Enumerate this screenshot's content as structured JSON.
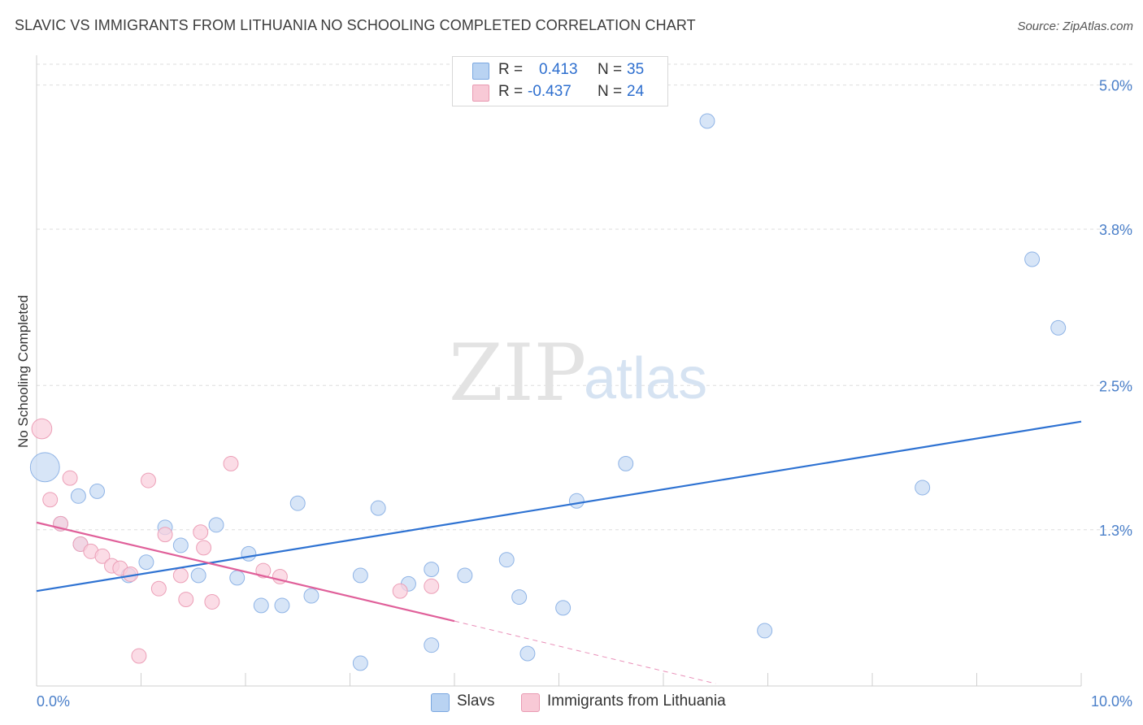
{
  "title": "SLAVIC VS IMMIGRANTS FROM LITHUANIA NO SCHOOLING COMPLETED CORRELATION CHART",
  "source": "Source: ZipAtlas.com",
  "watermark": {
    "zip": "ZIP",
    "atlas": "atlas"
  },
  "legend": {
    "rows": [
      {
        "r_label": "R = ",
        "r_value": "0.413",
        "n_label": "N = ",
        "n_value": "35",
        "color": "#b9d3f2",
        "border": "#7aa7e0"
      },
      {
        "r_label": "R = ",
        "r_value": "-0.437",
        "n_label": "N = ",
        "n_value": "24",
        "color": "#f8c9d6",
        "border": "#e99ab2"
      }
    ]
  },
  "bottom_legend": [
    {
      "label": "Slavs",
      "color": "#b9d3f2",
      "border": "#7aa7e0"
    },
    {
      "label": "Immigrants from Lithuania",
      "color": "#f8c9d6",
      "border": "#e99ab2"
    }
  ],
  "chart_data": {
    "type": "scatter",
    "title": "SLAVIC VS IMMIGRANTS FROM LITHUANIA NO SCHOOLING COMPLETED CORRELATION CHART",
    "xlabel": "",
    "ylabel": "No Schooling Completed",
    "xlim": [
      0,
      10
    ],
    "ylim": [
      0,
      5.2
    ],
    "x_tick_labels": [
      "0.0%",
      "10.0%"
    ],
    "y_ticks": [
      1.3,
      2.5,
      3.8,
      5.0
    ],
    "y_tick_labels": [
      "1.3%",
      "2.5%",
      "3.8%",
      "5.0%"
    ],
    "grid": true,
    "colors": {
      "slavs_line": "#2e72d2",
      "lith_line": "#e0609a",
      "slavs_fill": "#c9dcf4",
      "lith_fill": "#f9d0dd"
    },
    "series": [
      {
        "name": "Slavs",
        "points": [
          [
            0.08,
            1.82,
            16
          ],
          [
            0.23,
            1.35,
            8
          ],
          [
            0.4,
            1.58,
            8
          ],
          [
            0.58,
            1.62,
            8
          ],
          [
            0.42,
            1.18,
            8
          ],
          [
            0.88,
            0.92,
            8
          ],
          [
            1.05,
            1.03,
            8
          ],
          [
            1.23,
            1.32,
            8
          ],
          [
            1.38,
            1.17,
            8
          ],
          [
            1.55,
            0.92,
            8
          ],
          [
            1.72,
            1.34,
            8
          ],
          [
            1.92,
            0.9,
            8
          ],
          [
            2.03,
            1.1,
            8
          ],
          [
            2.15,
            0.67,
            8
          ],
          [
            2.35,
            0.67,
            8
          ],
          [
            2.5,
            1.52,
            8
          ],
          [
            2.63,
            0.75,
            8
          ],
          [
            3.1,
            0.92,
            8
          ],
          [
            3.1,
            0.19,
            8
          ],
          [
            3.27,
            1.48,
            8
          ],
          [
            3.56,
            0.85,
            8
          ],
          [
            3.78,
            0.97,
            8
          ],
          [
            3.78,
            0.34,
            8
          ],
          [
            4.1,
            0.92,
            8
          ],
          [
            4.5,
            1.05,
            8
          ],
          [
            4.62,
            0.74,
            8
          ],
          [
            4.7,
            0.27,
            8
          ],
          [
            5.04,
            0.65,
            8
          ],
          [
            5.17,
            1.54,
            8
          ],
          [
            5.64,
            1.85,
            8
          ],
          [
            6.42,
            4.7,
            8
          ],
          [
            6.97,
            0.46,
            8
          ],
          [
            8.48,
            1.65,
            8
          ],
          [
            9.53,
            3.55,
            8
          ],
          [
            9.78,
            2.98,
            8
          ]
        ],
        "trend": [
          [
            0,
            0.79
          ],
          [
            10,
            2.2
          ]
        ]
      },
      {
        "name": "Immigrants from Lithuania",
        "points": [
          [
            0.05,
            2.14,
            11
          ],
          [
            0.13,
            1.55,
            8
          ],
          [
            0.32,
            1.73,
            8
          ],
          [
            0.23,
            1.35,
            8
          ],
          [
            0.42,
            1.18,
            8
          ],
          [
            0.52,
            1.12,
            8
          ],
          [
            0.63,
            1.08,
            8
          ],
          [
            0.72,
            1.0,
            8
          ],
          [
            0.8,
            0.98,
            8
          ],
          [
            0.9,
            0.93,
            8
          ],
          [
            1.07,
            1.71,
            8
          ],
          [
            1.17,
            0.81,
            8
          ],
          [
            1.23,
            1.26,
            8
          ],
          [
            1.38,
            0.92,
            8
          ],
          [
            1.43,
            0.72,
            8
          ],
          [
            1.57,
            1.28,
            8
          ],
          [
            1.6,
            1.15,
            8
          ],
          [
            1.68,
            0.7,
            8
          ],
          [
            1.86,
            1.85,
            8
          ],
          [
            2.17,
            0.96,
            8
          ],
          [
            2.33,
            0.91,
            8
          ],
          [
            3.48,
            0.79,
            8
          ],
          [
            3.78,
            0.83,
            8
          ],
          [
            0.98,
            0.25,
            8
          ]
        ],
        "trend": [
          [
            0,
            1.36
          ],
          [
            4.0,
            0.54
          ]
        ],
        "trend_dashed": [
          [
            4.0,
            0.54
          ],
          [
            6.5,
            0.02
          ]
        ]
      }
    ]
  }
}
